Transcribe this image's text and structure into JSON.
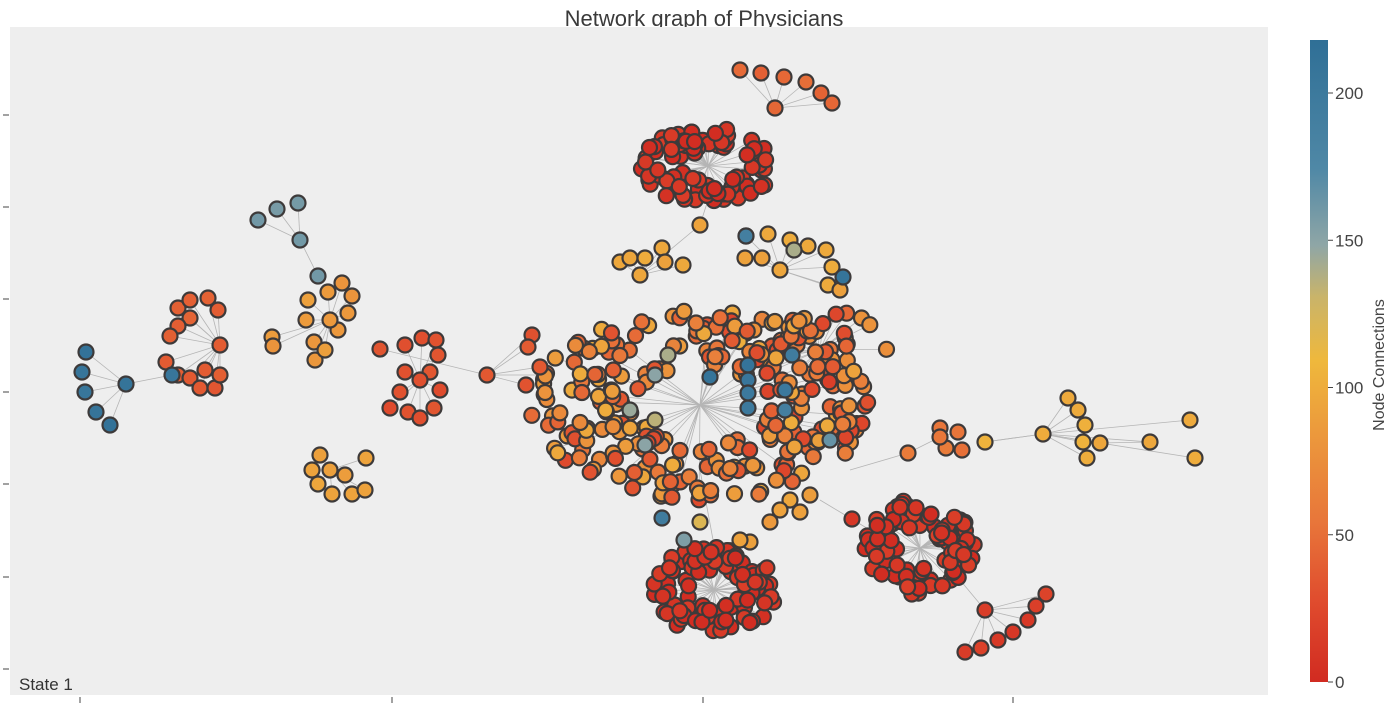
{
  "chart_data": {
    "type": "scatter",
    "title": "Network graph of Physicians",
    "annotation": "State 1",
    "colorbar": {
      "title": "Node Connections",
      "ticks": [
        0,
        50,
        100,
        150,
        200
      ],
      "range": [
        0,
        218
      ],
      "colorscale": [
        "#d63427",
        "#e8763a",
        "#efb83c",
        "#8fa6a6",
        "#2f6f96"
      ]
    },
    "axes": {
      "x_ticks_visible": true,
      "y_ticks_visible": true,
      "tick_labels": "none",
      "grid": false
    },
    "node_style": {
      "outline": "#3d3a3a",
      "edge_color": "#b5b5b5"
    },
    "clusters": [
      {
        "cx": 708,
        "cy": 166,
        "rx": 68,
        "ry": 38,
        "n": 90,
        "value": 6
      },
      {
        "cx": 714,
        "cy": 590,
        "rx": 62,
        "ry": 45,
        "n": 100,
        "value": 6
      },
      {
        "cx": 920,
        "cy": 548,
        "rx": 55,
        "ry": 50,
        "n": 95,
        "value": 8
      },
      {
        "cx": 700,
        "cy": 405,
        "rx": 170,
        "ry": 95,
        "n": 260,
        "value": 45
      },
      {
        "cx": 820,
        "cy": 350,
        "rx": 70,
        "ry": 40,
        "n": 40,
        "value": 40
      }
    ],
    "stars": [
      {
        "hub": [
          220,
          345
        ],
        "value": 38,
        "leaves": [
          [
            178,
            308
          ],
          [
            190,
            300
          ],
          [
            208,
            298
          ],
          [
            218,
            310
          ],
          [
            190,
            318
          ],
          [
            178,
            326
          ],
          [
            170,
            336
          ],
          [
            166,
            362
          ],
          [
            178,
            375
          ],
          [
            190,
            378
          ],
          [
            200,
            388
          ],
          [
            215,
            388
          ],
          [
            220,
            375
          ],
          [
            205,
            370
          ]
        ]
      },
      {
        "hub": [
          126,
          384
        ],
        "value": 210,
        "leaves": [
          [
            86,
            352
          ],
          [
            82,
            372
          ],
          [
            85,
            392
          ],
          [
            96,
            412
          ],
          [
            110,
            425
          ],
          [
            172,
            375
          ]
        ]
      },
      {
        "hub": [
          300,
          240
        ],
        "value": 160,
        "leaves": [
          [
            258,
            220
          ],
          [
            277,
            209
          ],
          [
            298,
            203
          ],
          [
            318,
            276
          ]
        ]
      },
      {
        "hub": [
          330,
          320
        ],
        "value": 85,
        "leaves": [
          [
            308,
            300
          ],
          [
            328,
            292
          ],
          [
            342,
            283
          ],
          [
            352,
            296
          ],
          [
            348,
            313
          ],
          [
            306,
            320
          ],
          [
            314,
            342
          ],
          [
            315,
            360
          ],
          [
            325,
            350
          ],
          [
            338,
            330
          ],
          [
            272,
            337
          ],
          [
            273,
            346
          ]
        ]
      },
      {
        "hub": [
          420,
          380
        ],
        "value": 30,
        "leaves": [
          [
            405,
            345
          ],
          [
            422,
            338
          ],
          [
            436,
            340
          ],
          [
            438,
            355
          ],
          [
            430,
            372
          ],
          [
            405,
            372
          ],
          [
            400,
            392
          ],
          [
            390,
            408
          ],
          [
            408,
            412
          ],
          [
            420,
            418
          ],
          [
            434,
            408
          ],
          [
            440,
            390
          ]
        ]
      },
      {
        "hub": [
          330,
          470
        ],
        "value": 90,
        "leaves": [
          [
            320,
            455
          ],
          [
            312,
            470
          ],
          [
            318,
            484
          ],
          [
            332,
            494
          ],
          [
            352,
            494
          ],
          [
            365,
            490
          ],
          [
            366,
            458
          ],
          [
            345,
            475
          ]
        ]
      },
      {
        "hub": [
          775,
          108
        ],
        "value": 45,
        "leaves": [
          [
            740,
            70
          ],
          [
            761,
            73
          ],
          [
            784,
            77
          ],
          [
            806,
            82
          ],
          [
            821,
            93
          ],
          [
            832,
            103
          ]
        ]
      },
      {
        "hub": [
          780,
          270
        ],
        "value": 95,
        "leaves": [
          [
            746,
            236
          ],
          [
            768,
            234
          ],
          [
            790,
            240
          ],
          [
            808,
            246
          ],
          [
            826,
            250
          ],
          [
            832,
            267
          ],
          [
            828,
            285
          ],
          [
            840,
            290
          ],
          [
            762,
            258
          ],
          [
            745,
            258
          ]
        ]
      },
      {
        "hub": [
          640,
          275
        ],
        "value": 95,
        "leaves": [
          [
            620,
            262
          ],
          [
            630,
            258
          ],
          [
            645,
            258
          ],
          [
            662,
            248
          ],
          [
            683,
            265
          ],
          [
            665,
            262
          ],
          [
            700,
            225
          ]
        ]
      },
      {
        "hub": [
          1043,
          434
        ],
        "value": 100,
        "leaves": [
          [
            1068,
            398
          ],
          [
            1078,
            410
          ],
          [
            1085,
            425
          ],
          [
            1083,
            442
          ],
          [
            1087,
            458
          ],
          [
            1100,
            443
          ],
          [
            1150,
            442
          ],
          [
            1190,
            420
          ],
          [
            1195,
            458
          ],
          [
            985,
            442
          ]
        ]
      },
      {
        "hub": [
          940,
          437
        ],
        "value": 55,
        "leaves": [
          [
            940,
            428
          ],
          [
            958,
            432
          ],
          [
            962,
            450
          ],
          [
            946,
            448
          ],
          [
            908,
            453
          ]
        ]
      },
      {
        "hub": [
          985,
          610
        ],
        "value": 15,
        "leaves": [
          [
            965,
            652
          ],
          [
            981,
            648
          ],
          [
            998,
            640
          ],
          [
            1013,
            632
          ],
          [
            1028,
            620
          ],
          [
            1036,
            606
          ],
          [
            1046,
            594
          ]
        ]
      },
      {
        "hub": [
          487,
          375
        ],
        "value": 35,
        "leaves": [
          [
            532,
            335
          ],
          [
            528,
            347
          ],
          [
            540,
            367
          ],
          [
            526,
            385
          ],
          [
            380,
            349
          ]
        ]
      }
    ],
    "special_nodes": [
      {
        "pos": [
          710,
          377
        ],
        "value": 210
      },
      {
        "pos": [
          748,
          365
        ],
        "value": 210
      },
      {
        "pos": [
          748,
          380
        ],
        "value": 205
      },
      {
        "pos": [
          748,
          408
        ],
        "value": 200
      },
      {
        "pos": [
          785,
          390
        ],
        "value": 200
      },
      {
        "pos": [
          792,
          355
        ],
        "value": 195
      },
      {
        "pos": [
          785,
          410
        ],
        "value": 190
      },
      {
        "pos": [
          748,
          393
        ],
        "value": 200
      },
      {
        "pos": [
          655,
          375
        ],
        "value": 150
      },
      {
        "pos": [
          668,
          355
        ],
        "value": 140
      },
      {
        "pos": [
          630,
          410
        ],
        "value": 145
      },
      {
        "pos": [
          645,
          445
        ],
        "value": 150
      },
      {
        "pos": [
          655,
          420
        ],
        "value": 135
      },
      {
        "pos": [
          830,
          440
        ],
        "value": 165
      },
      {
        "pos": [
          843,
          277
        ],
        "value": 210
      },
      {
        "pos": [
          746,
          236
        ],
        "value": 190
      },
      {
        "pos": [
          794,
          250
        ],
        "value": 140
      },
      {
        "pos": [
          684,
          540
        ],
        "value": 155
      },
      {
        "pos": [
          662,
          518
        ],
        "value": 195
      },
      {
        "pos": [
          700,
          522
        ],
        "value": 120
      }
    ],
    "bridge_nodes": [
      {
        "pos": [
          790,
          500
        ],
        "value": 95
      },
      {
        "pos": [
          800,
          512
        ],
        "value": 90
      },
      {
        "pos": [
          810,
          495
        ],
        "value": 88
      },
      {
        "pos": [
          780,
          510
        ],
        "value": 92
      },
      {
        "pos": [
          770,
          522
        ],
        "value": 85
      },
      {
        "pos": [
          852,
          519
        ],
        "value": 10
      },
      {
        "pos": [
          750,
          542
        ],
        "value": 90
      },
      {
        "pos": [
          740,
          540
        ],
        "value": 92
      }
    ]
  }
}
